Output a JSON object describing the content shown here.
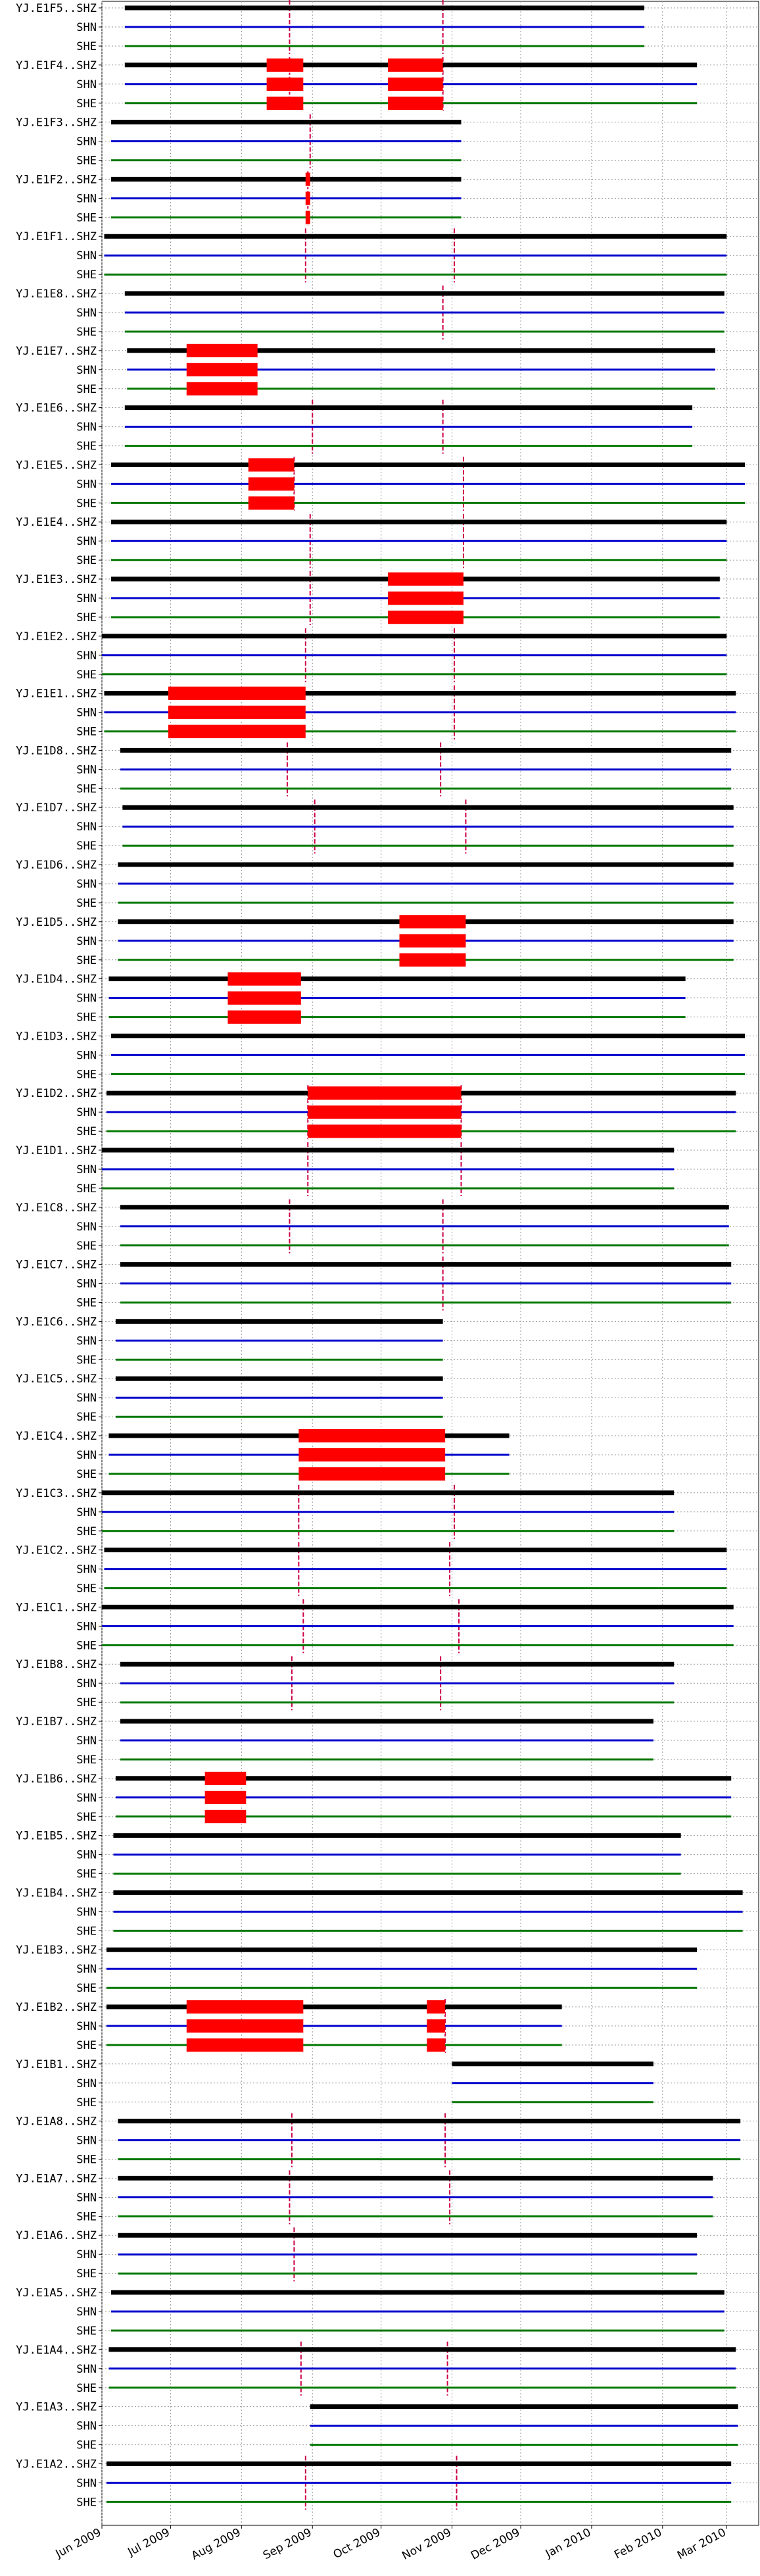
{
  "chart_data": {
    "type": "timeline",
    "x_range": [
      "2009-06-01",
      "2010-03-15"
    ],
    "x_ticks": [
      {
        "date": "2009-06-01",
        "label": "Jun 2009"
      },
      {
        "date": "2009-07-01",
        "label": "Jul 2009"
      },
      {
        "date": "2009-08-01",
        "label": "Aug 2009"
      },
      {
        "date": "2009-09-01",
        "label": "Sep 2009"
      },
      {
        "date": "2009-10-01",
        "label": "Oct 2009"
      },
      {
        "date": "2009-11-01",
        "label": "Nov 2009"
      },
      {
        "date": "2009-12-01",
        "label": "Dec 2009"
      },
      {
        "date": "2010-01-01",
        "label": "Jan 2010"
      },
      {
        "date": "2010-02-01",
        "label": "Feb 2010"
      },
      {
        "date": "2010-03-01",
        "label": "Mar 2010"
      }
    ],
    "grid": true,
    "channel_colors": {
      "SHZ": "#000000",
      "SHN": "#0000cc",
      "SHE": "#007700"
    },
    "gap_color": "#ff0000",
    "service_line_color": "#cc0044",
    "stations": [
      {
        "name": "YJ.E1F5",
        "start": "2009-06-11",
        "end": "2010-01-24",
        "gaps": [],
        "service": [
          "2009-08-22",
          "2009-10-28"
        ]
      },
      {
        "name": "YJ.E1F4",
        "start": "2009-06-11",
        "end": "2010-02-16",
        "gaps": [
          [
            "2009-08-12",
            "2009-08-28"
          ],
          [
            "2009-10-04",
            "2009-10-28"
          ]
        ],
        "service": [
          "2009-08-22",
          "2009-10-28"
        ]
      },
      {
        "name": "YJ.E1F3",
        "start": "2009-06-05",
        "end": "2009-11-05",
        "gaps": [],
        "service": [
          "2009-08-31"
        ]
      },
      {
        "name": "YJ.E1F2",
        "start": "2009-06-05",
        "end": "2009-11-05",
        "gaps": [
          [
            "2009-08-29",
            "2009-08-31"
          ]
        ],
        "service": [
          "2009-08-30"
        ]
      },
      {
        "name": "YJ.E1F1",
        "start": "2009-06-02",
        "end": "2010-03-01",
        "gaps": [],
        "service": [
          "2009-08-29",
          "2009-11-02"
        ]
      },
      {
        "name": "YJ.E1E8",
        "start": "2009-06-11",
        "end": "2010-02-28",
        "gaps": [],
        "service": [
          "2009-10-28"
        ]
      },
      {
        "name": "YJ.E1E7",
        "start": "2009-06-12",
        "end": "2010-02-24",
        "gaps": [
          [
            "2009-07-08",
            "2009-08-08"
          ]
        ],
        "service": []
      },
      {
        "name": "YJ.E1E6",
        "start": "2009-06-11",
        "end": "2010-02-14",
        "gaps": [],
        "service": [
          "2009-09-01",
          "2009-10-28"
        ]
      },
      {
        "name": "YJ.E1E5",
        "start": "2009-06-05",
        "end": "2010-03-09",
        "gaps": [
          [
            "2009-08-04",
            "2009-08-24"
          ]
        ],
        "service": [
          "2009-08-24",
          "2009-11-06"
        ]
      },
      {
        "name": "YJ.E1E4",
        "start": "2009-06-05",
        "end": "2010-03-01",
        "gaps": [],
        "service": [
          "2009-08-31",
          "2009-11-06"
        ]
      },
      {
        "name": "YJ.E1E3",
        "start": "2009-06-05",
        "end": "2010-02-26",
        "gaps": [
          [
            "2009-10-04",
            "2009-11-06"
          ]
        ],
        "service": [
          "2009-08-31"
        ]
      },
      {
        "name": "YJ.E1E2",
        "start": "2009-06-01",
        "end": "2010-03-01",
        "gaps": [],
        "service": [
          "2009-08-29",
          "2009-11-02"
        ]
      },
      {
        "name": "YJ.E1E1",
        "start": "2009-06-02",
        "end": "2010-03-05",
        "gaps": [
          [
            "2009-06-30",
            "2009-08-29"
          ]
        ],
        "service": [
          "2009-11-02"
        ]
      },
      {
        "name": "YJ.E1D8",
        "start": "2009-06-09",
        "end": "2010-03-03",
        "gaps": [],
        "service": [
          "2009-08-21",
          "2009-10-27"
        ]
      },
      {
        "name": "YJ.E1D7",
        "start": "2009-06-10",
        "end": "2010-03-04",
        "gaps": [],
        "service": [
          "2009-09-02",
          "2009-11-07"
        ]
      },
      {
        "name": "YJ.E1D6",
        "start": "2009-06-08",
        "end": "2010-03-04",
        "gaps": [],
        "service": []
      },
      {
        "name": "YJ.E1D5",
        "start": "2009-06-08",
        "end": "2010-03-04",
        "gaps": [
          [
            "2009-10-09",
            "2009-11-07"
          ]
        ],
        "service": []
      },
      {
        "name": "YJ.E1D4",
        "start": "2009-06-04",
        "end": "2010-02-11",
        "gaps": [
          [
            "2009-07-26",
            "2009-08-27"
          ]
        ],
        "service": []
      },
      {
        "name": "YJ.E1D3",
        "start": "2009-06-05",
        "end": "2010-03-09",
        "gaps": [],
        "service": []
      },
      {
        "name": "YJ.E1D2",
        "start": "2009-06-03",
        "end": "2010-03-05",
        "gaps": [
          [
            "2009-08-30",
            "2009-11-05"
          ]
        ],
        "service": [
          "2009-08-30",
          "2009-11-05"
        ]
      },
      {
        "name": "YJ.E1D1",
        "start": "2009-06-01",
        "end": "2010-02-06",
        "gaps": [],
        "service": [
          "2009-08-30",
          "2009-11-05"
        ]
      },
      {
        "name": "YJ.E1C8",
        "start": "2009-06-09",
        "end": "2010-03-02",
        "gaps": [],
        "service": [
          "2009-08-22",
          "2009-10-28"
        ]
      },
      {
        "name": "YJ.E1C7",
        "start": "2009-06-09",
        "end": "2010-03-03",
        "gaps": [],
        "service": [
          "2009-10-28"
        ]
      },
      {
        "name": "YJ.E1C6",
        "start": "2009-06-07",
        "end": "2009-10-28",
        "gaps": [],
        "service": []
      },
      {
        "name": "YJ.E1C5",
        "start": "2009-06-07",
        "end": "2009-10-28",
        "gaps": [],
        "service": []
      },
      {
        "name": "YJ.E1C4",
        "start": "2009-06-04",
        "end": "2009-11-26",
        "gaps": [
          [
            "2009-08-26",
            "2009-10-29"
          ]
        ],
        "service": []
      },
      {
        "name": "YJ.E1C3",
        "start": "2009-06-01",
        "end": "2010-02-06",
        "gaps": [],
        "service": [
          "2009-08-26",
          "2009-11-02"
        ]
      },
      {
        "name": "YJ.E1C2",
        "start": "2009-06-02",
        "end": "2010-03-01",
        "gaps": [],
        "service": [
          "2009-08-26",
          "2009-10-31"
        ]
      },
      {
        "name": "YJ.E1C1",
        "start": "2009-06-01",
        "end": "2010-03-04",
        "gaps": [],
        "service": [
          "2009-08-28",
          "2009-11-04"
        ]
      },
      {
        "name": "YJ.E1B8",
        "start": "2009-06-09",
        "end": "2010-02-06",
        "gaps": [],
        "service": [
          "2009-08-23",
          "2009-10-27"
        ]
      },
      {
        "name": "YJ.E1B7",
        "start": "2009-06-09",
        "end": "2010-01-28",
        "gaps": [],
        "service": []
      },
      {
        "name": "YJ.E1B6",
        "start": "2009-06-07",
        "end": "2010-03-03",
        "gaps": [
          [
            "2009-07-16",
            "2009-08-03"
          ]
        ],
        "service": []
      },
      {
        "name": "YJ.E1B5",
        "start": "2009-06-06",
        "end": "2010-02-09",
        "gaps": [],
        "service": []
      },
      {
        "name": "YJ.E1B4",
        "start": "2009-06-06",
        "end": "2010-03-08",
        "gaps": [],
        "service": []
      },
      {
        "name": "YJ.E1B3",
        "start": "2009-06-03",
        "end": "2010-02-16",
        "gaps": [],
        "service": []
      },
      {
        "name": "YJ.E1B2",
        "start": "2009-06-03",
        "end": "2009-12-19",
        "gaps": [
          [
            "2009-07-08",
            "2009-08-28"
          ],
          [
            "2009-10-21",
            "2009-10-29"
          ]
        ],
        "service": [
          "2009-10-29"
        ]
      },
      {
        "name": "YJ.E1B1",
        "start": "2009-11-01",
        "end": "2010-01-28",
        "gaps": [],
        "service": []
      },
      {
        "name": "YJ.E1A8",
        "start": "2009-06-08",
        "end": "2010-03-07",
        "gaps": [],
        "service": [
          "2009-08-23",
          "2009-10-29"
        ]
      },
      {
        "name": "YJ.E1A7",
        "start": "2009-06-08",
        "end": "2010-02-23",
        "gaps": [],
        "service": [
          "2009-08-22",
          "2009-10-31"
        ]
      },
      {
        "name": "YJ.E1A6",
        "start": "2009-06-08",
        "end": "2010-02-16",
        "gaps": [],
        "service": [
          "2009-08-24"
        ]
      },
      {
        "name": "YJ.E1A5",
        "start": "2009-06-05",
        "end": "2010-02-28",
        "gaps": [],
        "service": []
      },
      {
        "name": "YJ.E1A4",
        "start": "2009-06-04",
        "end": "2010-03-05",
        "gaps": [],
        "service": [
          "2009-08-27",
          "2009-10-30"
        ]
      },
      {
        "name": "YJ.E1A3",
        "start": "2009-08-31",
        "end": "2010-03-06",
        "gaps": [],
        "service": []
      },
      {
        "name": "YJ.E1A2",
        "start": "2009-06-03",
        "end": "2010-03-03",
        "gaps": [],
        "service": [
          "2009-08-29",
          "2009-11-03"
        ]
      }
    ]
  }
}
